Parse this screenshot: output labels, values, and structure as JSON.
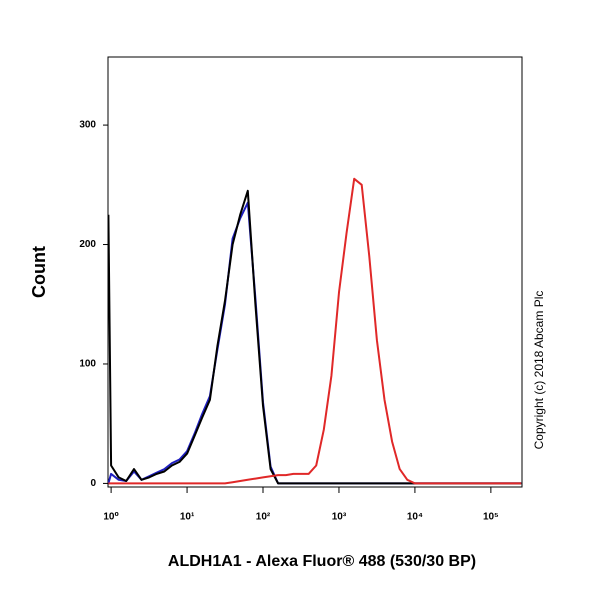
{
  "chart_data": {
    "type": "line",
    "x_label": "ALDH1A1 - Alexa Fluor® 488 (530/30 BP)",
    "y_label": "Count",
    "annotation": "Copyright (c) 2018 Abcam Plc",
    "x_scale": "log",
    "xlim": [
      0.91,
      257000
    ],
    "ylim": [
      -3,
      357
    ],
    "xticks": [
      {
        "value": 1,
        "label": "10⁰"
      },
      {
        "value": 10,
        "label": "10¹"
      },
      {
        "value": 100,
        "label": "10²"
      },
      {
        "value": 1000,
        "label": "10³"
      },
      {
        "value": 10000,
        "label": "10⁴"
      },
      {
        "value": 100000,
        "label": "10⁵"
      }
    ],
    "yticks": [
      0,
      100,
      200,
      300
    ],
    "x": [
      0.92,
      1,
      1.26,
      1.58,
      2,
      2.51,
      3.16,
      3.98,
      5.01,
      6.31,
      7.94,
      10,
      12.6,
      15.8,
      20,
      25.1,
      31.6,
      39.8,
      50.1,
      63.1,
      79.4,
      100,
      126,
      158,
      200,
      251,
      316,
      398,
      501,
      631,
      794,
      1000,
      1259,
      1585,
      1995,
      2512,
      3162,
      3981,
      5012,
      6310,
      7943,
      10000,
      12589,
      15849,
      19953,
      25119,
      31623,
      39811,
      50119,
      63096,
      79433,
      100000,
      125893,
      158489,
      199526,
      251189
    ],
    "series": [
      {
        "color": "#1f1fc0",
        "values": [
          0,
          8,
          3,
          2,
          10,
          3,
          6,
          9,
          12,
          17,
          20,
          27,
          42,
          58,
          73,
          112,
          150,
          205,
          222,
          235,
          155,
          68,
          14,
          0,
          0,
          0,
          0,
          0,
          0,
          0,
          0,
          0,
          0,
          0,
          0,
          0,
          0,
          0,
          0,
          0,
          0,
          0,
          0,
          0,
          0,
          0,
          0,
          0,
          0,
          0,
          0,
          0,
          0,
          0,
          0,
          0
        ]
      },
      {
        "color": "#000000",
        "values": [
          225,
          15,
          5,
          2,
          12,
          3,
          5,
          8,
          10,
          15,
          18,
          25,
          40,
          55,
          70,
          115,
          153,
          200,
          225,
          245,
          150,
          65,
          12,
          0,
          0,
          0,
          0,
          0,
          0,
          0,
          0,
          0,
          0,
          0,
          0,
          0,
          0,
          0,
          0,
          0,
          0,
          0,
          0,
          0,
          0,
          0,
          0,
          0,
          0,
          0,
          0,
          0,
          0,
          0,
          0,
          0
        ]
      },
      {
        "color": "#e02828",
        "values": [
          0,
          0,
          0,
          0,
          0,
          0,
          0,
          0,
          0,
          0,
          0,
          0,
          0,
          0,
          0,
          0,
          0,
          1,
          2,
          3,
          4,
          5,
          6,
          7,
          7,
          8,
          8,
          8,
          15,
          45,
          90,
          160,
          210,
          255,
          250,
          190,
          120,
          70,
          35,
          12,
          3,
          0,
          0,
          0,
          0,
          0,
          0,
          0,
          0,
          0,
          0,
          0,
          0,
          0,
          0,
          0
        ]
      }
    ]
  }
}
